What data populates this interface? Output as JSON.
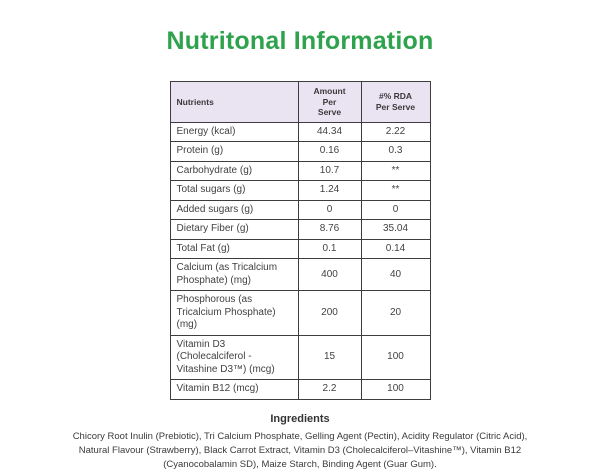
{
  "title": {
    "text": "Nutritonal Information",
    "color": "#2ea24d"
  },
  "colors": {
    "header_background": "#eae4f2",
    "table_border": "#3d3d3d",
    "body_text": "#404040",
    "page_background": "#ffffff"
  },
  "table": {
    "header": {
      "nutrients": "Nutrients",
      "amount": "Amount\nPer\nServe",
      "rda": "#% RDA\nPer Serve"
    },
    "rows": [
      {
        "nutrient": "Energy (kcal)",
        "amount": "44.34",
        "rda": "2.22"
      },
      {
        "nutrient": "Protein (g)",
        "amount": "0.16",
        "rda": "0.3"
      },
      {
        "nutrient": "Carbohydrate (g)",
        "amount": "10.7",
        "rda": "**"
      },
      {
        "nutrient": "Total sugars (g)",
        "amount": "1.24",
        "rda": "**"
      },
      {
        "nutrient": "Added sugars (g)",
        "amount": "0",
        "rda": "0"
      },
      {
        "nutrient": "Dietary Fiber (g)",
        "amount": "8.76",
        "rda": "35.04"
      },
      {
        "nutrient": "Total Fat (g)",
        "amount": "0.1",
        "rda": "0.14"
      },
      {
        "nutrient": "Calcium (as Tricalcium Phosphate) (mg)",
        "amount": "400",
        "rda": "40"
      },
      {
        "nutrient": "Phosphorous (as Tricalcium Phosphate) (mg)",
        "amount": "200",
        "rda": "20"
      },
      {
        "nutrient": "Vitamin D3 (Cholecalciferol - Vitashine D3™) (mcg)",
        "amount": "15",
        "rda": "100"
      },
      {
        "nutrient": "Vitamin B12 (mcg)",
        "amount": "2.2",
        "rda": "100"
      }
    ]
  },
  "ingredients": {
    "heading": "Ingredients",
    "text": "Chicory Root Inulin (Prebiotic), Tri Calcium Phosphate, Gelling Agent (Pectin), Acidity Regulator (Citric Acid), Natural Flavour (Strawberry), Black Carrot Extract, Vitamin D3 (Cholecalciferol–Vitashine™), Vitamin B12 (Cyanocobalamin SD), Maize Starch, Binding Agent (Guar Gum)."
  }
}
